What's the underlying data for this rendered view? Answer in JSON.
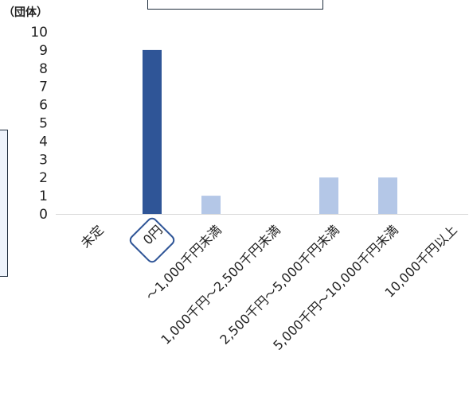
{
  "chart_data": {
    "type": "bar",
    "unit_label": "（団体）",
    "categories": [
      "未定",
      "0円",
      "～1,000千円未満",
      "1,000千円～2,500千円未満",
      "2,500千円～5,000千円未満",
      "5,000千円～10,000千円未満",
      "10,000千円以上"
    ],
    "values": [
      0,
      9,
      1,
      0,
      2,
      2,
      0
    ],
    "highlight_index": 1,
    "ylim": [
      0,
      10
    ],
    "yticks": [
      0,
      1,
      2,
      3,
      4,
      5,
      6,
      7,
      8,
      9,
      10
    ],
    "colors": {
      "highlight": "#2f5597",
      "bar": "#b4c7e7",
      "axis": "#d9d9d9",
      "callout_border": "#2f5597"
    },
    "grid": false,
    "legend": "none"
  }
}
